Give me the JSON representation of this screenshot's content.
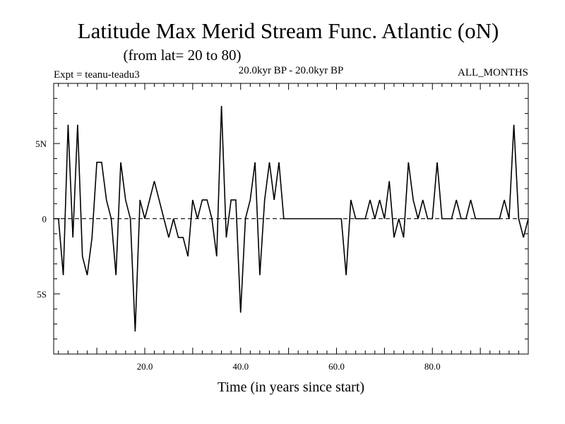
{
  "chart_data": {
    "type": "line",
    "title": "Latitude Max Merid Stream Func. Atlantic (oN)",
    "subtitle": "(from lat= 20 to 80)",
    "expt": "Expt = teanu-teadu3",
    "period": "20.0kyr BP - 20.0kyr BP",
    "months": "ALL_MONTHS",
    "xlabel": "Time (in years since start)",
    "xlim": [
      1,
      100
    ],
    "ylim": [
      -9,
      9
    ],
    "xticks": [
      {
        "value": 20,
        "label": "20.0"
      },
      {
        "value": 40,
        "label": "40.0"
      },
      {
        "value": 60,
        "label": "60.0"
      },
      {
        "value": 80,
        "label": "80.0"
      }
    ],
    "yticks": [
      {
        "value": 5,
        "label": "5N"
      },
      {
        "value": 0,
        "label": "0"
      },
      {
        "value": -5,
        "label": "5S"
      }
    ],
    "zero_line": "dashed",
    "series": [
      {
        "name": "latitude-max",
        "x": [
          1,
          2,
          3,
          4,
          5,
          6,
          7,
          8,
          9,
          10,
          11,
          12,
          13,
          14,
          15,
          16,
          17,
          18,
          19,
          20,
          21,
          22,
          23,
          24,
          25,
          26,
          27,
          28,
          29,
          30,
          31,
          32,
          33,
          34,
          35,
          36,
          37,
          38,
          39,
          40,
          41,
          42,
          43,
          44,
          45,
          46,
          47,
          48,
          49,
          50,
          51,
          52,
          53,
          54,
          55,
          56,
          57,
          58,
          59,
          60,
          61,
          62,
          63,
          64,
          65,
          66,
          67,
          68,
          69,
          70,
          71,
          72,
          73,
          74,
          75,
          76,
          77,
          78,
          79,
          80,
          81,
          82,
          83,
          84,
          85,
          86,
          87,
          88,
          89,
          90,
          91,
          92,
          93,
          94,
          95,
          96,
          97,
          98,
          99,
          100
        ],
        "y": [
          0,
          0,
          -3.75,
          6.25,
          -1.25,
          6.25,
          -2.5,
          -3.75,
          -1.25,
          3.75,
          3.75,
          1.25,
          0,
          -3.75,
          3.75,
          1.25,
          0,
          -7.5,
          1.25,
          0,
          1.25,
          2.5,
          1.25,
          0,
          -1.25,
          0,
          -1.25,
          -1.25,
          -2.5,
          1.25,
          0,
          1.25,
          1.25,
          0,
          -2.5,
          7.5,
          -1.25,
          1.25,
          1.25,
          -6.25,
          0,
          1.25,
          3.75,
          -3.75,
          1.25,
          3.75,
          1.25,
          3.75,
          0,
          0,
          0,
          0,
          0,
          0,
          0,
          0,
          0,
          0,
          0,
          0,
          0,
          -3.75,
          1.25,
          0,
          0,
          0,
          1.25,
          0,
          1.25,
          0,
          2.5,
          -1.25,
          0,
          -1.25,
          3.75,
          1.25,
          0,
          1.25,
          0,
          0,
          3.75,
          0,
          0,
          0,
          1.25,
          0,
          0,
          1.25,
          0,
          0,
          0,
          0,
          0,
          0,
          1.25,
          0,
          6.25,
          0,
          -1.25,
          0
        ]
      }
    ]
  }
}
